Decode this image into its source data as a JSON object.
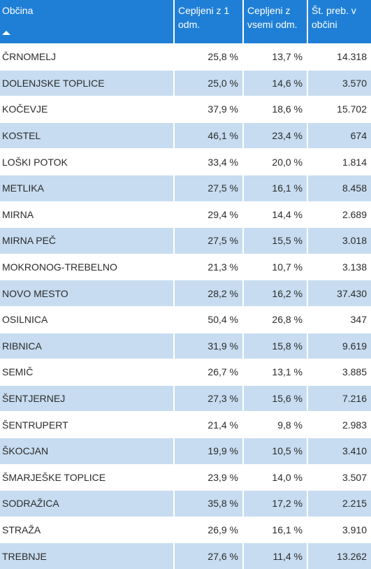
{
  "colors": {
    "header_bg": "#1f7fd6",
    "header_text": "#ffffff",
    "row_alt_bg": "#c7dcf0",
    "row_bg": "#ffffff"
  },
  "table": {
    "headers": [
      {
        "label": "Občina",
        "sort_icon": "sort-ascending-icon"
      },
      {
        "label": "Cepljeni z 1 odm."
      },
      {
        "label": "Cepljeni z vsemi odm."
      },
      {
        "label": "Št. preb. v občini"
      }
    ],
    "rows": [
      [
        "ČRNOMELJ",
        "25,8 %",
        "13,7 %",
        "14.318"
      ],
      [
        "DOLENJSKE TOPLICE",
        "25,0 %",
        "14,6 %",
        "3.570"
      ],
      [
        "KOČEVJE",
        "37,9 %",
        "18,6 %",
        "15.702"
      ],
      [
        "KOSTEL",
        "46,1 %",
        "23,4 %",
        "674"
      ],
      [
        "LOŠKI POTOK",
        "33,4 %",
        "20,0 %",
        "1.814"
      ],
      [
        "METLIKA",
        "27,5 %",
        "16,1 %",
        "8.458"
      ],
      [
        "MIRNA",
        "29,4 %",
        "14,4 %",
        "2.689"
      ],
      [
        "MIRNA PEČ",
        "27,5 %",
        "15,5 %",
        "3.018"
      ],
      [
        "MOKRONOG-TREBELNO",
        "21,3 %",
        "10,7 %",
        "3.138"
      ],
      [
        "NOVO MESTO",
        "28,2 %",
        "16,2 %",
        "37.430"
      ],
      [
        "OSILNICA",
        "50,4 %",
        "26,8 %",
        "347"
      ],
      [
        "RIBNICA",
        "31,9 %",
        "15,8 %",
        "9.619"
      ],
      [
        "SEMIČ",
        "26,7 %",
        "13,1 %",
        "3.885"
      ],
      [
        "ŠENTJERNEJ",
        "27,3 %",
        "15,6 %",
        "7.216"
      ],
      [
        "ŠENTRUPERT",
        "21,4 %",
        "9,8 %",
        "2.983"
      ],
      [
        "ŠKOCJAN",
        "19,9 %",
        "10,5 %",
        "3.410"
      ],
      [
        "ŠMARJEŠKE TOPLICE",
        "23,9 %",
        "14,0 %",
        "3.507"
      ],
      [
        "SODRAŽICA",
        "35,8 %",
        "17,2 %",
        "2.215"
      ],
      [
        "STRAŽA",
        "26,9 %",
        "16,1 %",
        "3.910"
      ],
      [
        "TREBNJE",
        "27,6 %",
        "11,4 %",
        "13.262"
      ]
    ]
  }
}
